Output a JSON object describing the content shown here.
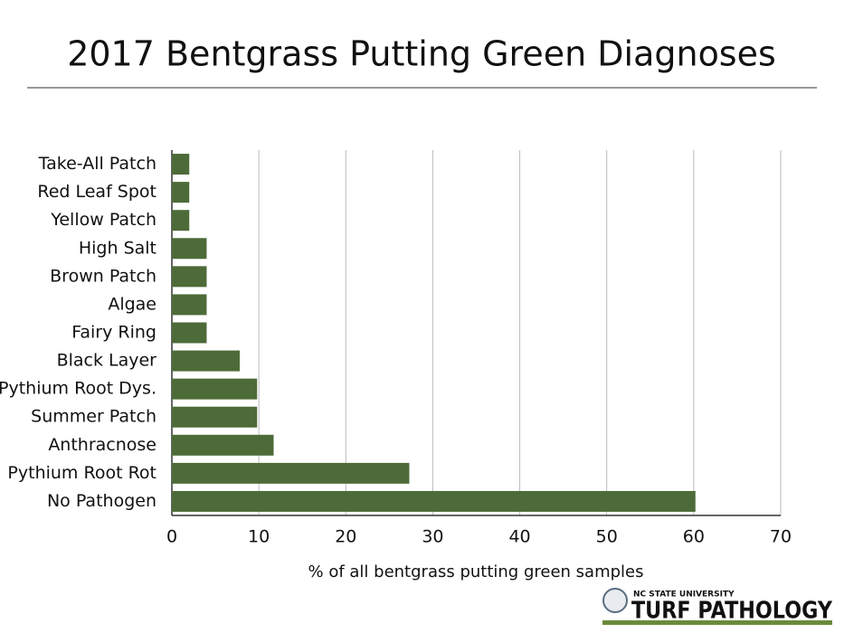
{
  "chart_data": {
    "type": "hbar",
    "title": "2017 Bentgrass Putting Green Diagnoses",
    "x_label": "% of all bentgrass putting green samples",
    "categories": [
      "Take-All Patch",
      "Red Leaf Spot",
      "Yellow Patch",
      "High Salt",
      "Brown Patch",
      "Algae",
      "Fairy Ring",
      "Black Layer",
      "Pythium Root Dys.",
      "Summer Patch",
      "Anthracnose",
      "Pythium Root Rot",
      "No Pathogen"
    ],
    "values": [
      2,
      2,
      2,
      4,
      4,
      4,
      4,
      7.8,
      9.8,
      9.8,
      11.7,
      27.3,
      60.2
    ],
    "color": "#4d6b38",
    "xlim": [
      0,
      70
    ],
    "xticks": [
      0,
      10,
      20,
      30,
      40,
      50,
      60,
      70
    ],
    "grid": true,
    "logo": {
      "university": "NC STATE UNIVERSITY",
      "name": "TURF PATHOLOGY"
    }
  }
}
